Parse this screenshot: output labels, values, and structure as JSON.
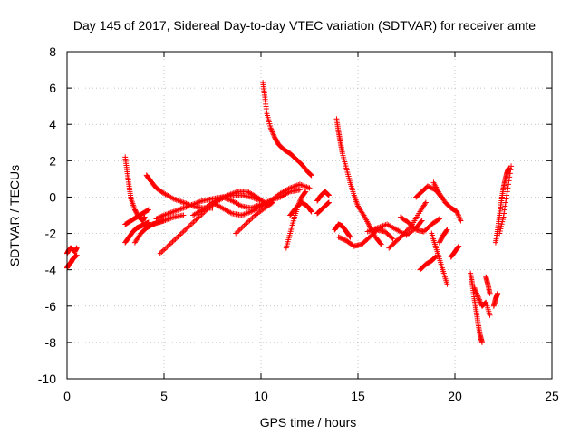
{
  "chart_data": {
    "type": "scatter",
    "title": "Day 145 of 2017, Sidereal Day-to-day VTEC variation (SDTVAR) for receiver amte",
    "xlabel": "GPS time / hours",
    "ylabel": "SDTVAR / TECUs",
    "xlim": [
      0,
      25
    ],
    "ylim": [
      -10,
      8
    ],
    "xticks": [
      0,
      5,
      10,
      15,
      20,
      25
    ],
    "yticks": [
      -10,
      -8,
      -6,
      -4,
      -2,
      0,
      2,
      4,
      6,
      8
    ],
    "xtick_labels": [
      "0",
      "5",
      "10",
      "15",
      "20",
      "25"
    ],
    "ytick_labels": [
      "-10",
      "-8",
      "-6",
      "-4",
      "-2",
      "0",
      "2",
      "4",
      "6",
      "8"
    ],
    "grid": true,
    "marker": "plus",
    "color": "#ff0000",
    "series": [
      {
        "x": [
          0.0,
          0.1,
          0.2,
          0.3,
          0.4,
          0.5
        ],
        "y": [
          -3.1,
          -2.9,
          -2.8,
          -2.9,
          -3.0,
          -2.8
        ]
      },
      {
        "x": [
          0.0,
          0.1,
          0.2,
          0.3,
          0.4,
          0.5
        ],
        "y": [
          -3.9,
          -3.7,
          -3.6,
          -3.4,
          -3.3,
          -3.2
        ]
      },
      {
        "x": [
          3.0,
          3.1,
          3.2,
          3.3,
          3.5,
          3.7,
          3.9,
          4.0
        ],
        "y": [
          2.2,
          1.4,
          0.6,
          -0.1,
          -0.7,
          -1.1,
          -1.3,
          -1.1
        ]
      },
      {
        "x": [
          3.0,
          3.2,
          3.4,
          3.6,
          3.8,
          4.0,
          4.2
        ],
        "y": [
          -2.5,
          -2.2,
          -1.9,
          -1.7,
          -1.6,
          -1.5,
          -1.4
        ]
      },
      {
        "x": [
          3.0,
          3.3,
          3.6,
          3.9,
          4.2
        ],
        "y": [
          -1.5,
          -1.3,
          -1.1,
          -0.9,
          -0.7
        ]
      },
      {
        "x": [
          3.5,
          3.8,
          4.1,
          4.4,
          4.7,
          5.0,
          5.5,
          6.0
        ],
        "y": [
          -2.5,
          -2.0,
          -1.7,
          -1.5,
          -1.4,
          -1.3,
          -1.1,
          -1.0
        ]
      },
      {
        "x": [
          4.1,
          4.3,
          4.6,
          5.0,
          5.5,
          6.0,
          6.5,
          7.0,
          7.5
        ],
        "y": [
          1.2,
          0.9,
          0.5,
          0.2,
          -0.1,
          -0.3,
          -0.5,
          -0.6,
          -0.6
        ]
      },
      {
        "x": [
          4.6,
          5.0,
          5.5,
          6.0,
          6.5,
          7.0,
          7.5,
          8.0,
          8.5,
          9.0,
          9.5,
          10.0
        ],
        "y": [
          -1.2,
          -1.0,
          -0.8,
          -0.6,
          -0.4,
          -0.2,
          -0.1,
          0.0,
          0.1,
          0.1,
          0.0,
          -0.2
        ]
      },
      {
        "x": [
          4.8,
          5.3,
          5.8,
          6.3,
          6.8,
          7.3,
          7.8,
          8.3,
          8.8,
          9.3,
          9.8,
          10.3
        ],
        "y": [
          -3.1,
          -2.6,
          -2.1,
          -1.6,
          -1.1,
          -0.6,
          -0.2,
          0.1,
          0.3,
          0.3,
          0.0,
          -0.4
        ]
      },
      {
        "x": [
          6.5,
          7.0,
          7.5,
          8.0,
          8.5,
          9.0,
          9.5,
          10.0,
          10.5,
          11.0,
          11.5,
          12.0
        ],
        "y": [
          -1.0,
          -0.7,
          -0.3,
          0.0,
          -0.2,
          -0.5,
          -0.6,
          -0.4,
          -0.2,
          0.0,
          0.3,
          0.4
        ]
      },
      {
        "x": [
          7.5,
          8.0,
          8.5,
          9.0,
          9.5,
          10.0,
          10.5,
          11.0,
          11.5,
          12.0,
          12.5
        ],
        "y": [
          -0.3,
          -0.6,
          -0.9,
          -1.0,
          -0.8,
          -0.5,
          -0.2,
          0.2,
          0.5,
          0.7,
          0.5
        ]
      },
      {
        "x": [
          8.7,
          9.2,
          9.7,
          10.2,
          10.6
        ],
        "y": [
          -2.0,
          -1.5,
          -1.0,
          -0.6,
          -0.3
        ]
      },
      {
        "x": [
          10.1,
          10.2,
          10.3,
          10.5,
          10.7,
          10.9,
          11.2,
          11.5,
          11.8,
          12.1,
          12.4,
          12.6
        ],
        "y": [
          6.3,
          5.5,
          4.6,
          3.8,
          3.3,
          2.9,
          2.6,
          2.4,
          2.1,
          1.8,
          1.4,
          1.2
        ]
      },
      {
        "x": [
          11.3,
          11.5,
          11.7,
          11.9,
          12.1,
          12.3
        ],
        "y": [
          -2.8,
          -2.0,
          -1.2,
          -0.5,
          0.0,
          0.3
        ]
      },
      {
        "x": [
          11.5,
          11.8,
          12.1,
          12.4,
          12.6
        ],
        "y": [
          -1.0,
          -0.6,
          -0.3,
          -0.5,
          -0.8
        ]
      },
      {
        "x": [
          12.9,
          13.1,
          13.3,
          13.5
        ],
        "y": [
          -0.2,
          0.1,
          0.3,
          0.1
        ]
      },
      {
        "x": [
          12.9,
          13.1,
          13.3,
          13.5
        ],
        "y": [
          -0.9,
          -0.7,
          -0.5,
          -0.3
        ]
      },
      {
        "x": [
          13.9,
          14.0,
          14.1,
          14.2,
          14.4,
          14.6,
          14.8,
          15.0,
          15.3,
          15.6,
          15.9,
          16.2
        ],
        "y": [
          4.3,
          3.6,
          3.0,
          2.4,
          1.6,
          0.8,
          0.1,
          -0.5,
          -1.0,
          -1.6,
          -2.2,
          -2.6
        ]
      },
      {
        "x": [
          13.8,
          14.0,
          14.2,
          14.4,
          14.6
        ],
        "y": [
          -1.8,
          -1.5,
          -1.6,
          -1.9,
          -2.2
        ]
      },
      {
        "x": [
          14.0,
          14.4,
          14.8,
          15.2,
          15.6,
          16.0,
          16.4,
          16.8
        ],
        "y": [
          -2.2,
          -2.4,
          -2.7,
          -2.6,
          -2.2,
          -1.8,
          -1.9,
          -2.3
        ]
      },
      {
        "x": [
          15.5,
          16.0,
          16.5,
          17.0,
          17.5,
          18.0,
          18.3
        ],
        "y": [
          -1.9,
          -1.7,
          -1.5,
          -1.8,
          -2.1,
          -1.7,
          -1.3
        ]
      },
      {
        "x": [
          16.6,
          17.0,
          17.4,
          17.8,
          18.2,
          18.5
        ],
        "y": [
          -2.8,
          -2.4,
          -2.0,
          -1.5,
          -0.8,
          -0.3
        ]
      },
      {
        "x": [
          17.2,
          17.6,
          18.0,
          18.4,
          18.8,
          19.2
        ],
        "y": [
          -1.1,
          -1.4,
          -1.8,
          -1.9,
          -1.5,
          -1.2
        ]
      },
      {
        "x": [
          18.0,
          18.3,
          18.6,
          19.0,
          19.3
        ],
        "y": [
          0.0,
          0.3,
          0.6,
          0.4,
          0.0
        ]
      },
      {
        "x": [
          18.9,
          19.2,
          19.5,
          19.8,
          20.1,
          20.3
        ],
        "y": [
          0.8,
          0.2,
          -0.3,
          -0.6,
          -0.8,
          -1.3
        ]
      },
      {
        "x": [
          18.8,
          19.0,
          19.2,
          19.4,
          19.6
        ],
        "y": [
          -2.0,
          -2.7,
          -3.4,
          -4.1,
          -4.8
        ]
      },
      {
        "x": [
          18.2,
          18.5,
          18.8,
          19.0
        ],
        "y": [
          -4.0,
          -3.7,
          -3.5,
          -3.3
        ]
      },
      {
        "x": [
          19.2,
          19.4,
          19.6
        ],
        "y": [
          -2.5,
          -2.1,
          -1.8
        ]
      },
      {
        "x": [
          19.8,
          20.0,
          20.2
        ],
        "y": [
          -3.3,
          -3.0,
          -2.7
        ]
      },
      {
        "x": [
          20.8,
          20.9,
          21.0,
          21.1,
          21.2,
          21.3,
          21.4
        ],
        "y": [
          -4.2,
          -4.8,
          -5.6,
          -6.3,
          -7.0,
          -7.6,
          -8.0
        ]
      },
      {
        "x": [
          21.0,
          21.2,
          21.4,
          21.6,
          21.8
        ],
        "y": [
          -5.0,
          -5.5,
          -6.0,
          -5.8,
          -6.5
        ]
      },
      {
        "x": [
          21.6,
          21.7,
          21.8
        ],
        "y": [
          -4.4,
          -4.8,
          -5.3
        ]
      },
      {
        "x": [
          22.0,
          22.1,
          22.2
        ],
        "y": [
          -6.0,
          -5.6,
          -5.3
        ]
      },
      {
        "x": [
          22.1,
          22.2,
          22.3,
          22.4,
          22.5,
          22.6,
          22.7,
          22.8
        ],
        "y": [
          -2.5,
          -1.8,
          -1.0,
          -0.2,
          0.5,
          1.0,
          1.4,
          1.6
        ]
      },
      {
        "x": [
          22.3,
          22.5,
          22.7,
          22.9
        ],
        "y": [
          -2.0,
          -1.1,
          0.3,
          1.7
        ]
      }
    ]
  }
}
